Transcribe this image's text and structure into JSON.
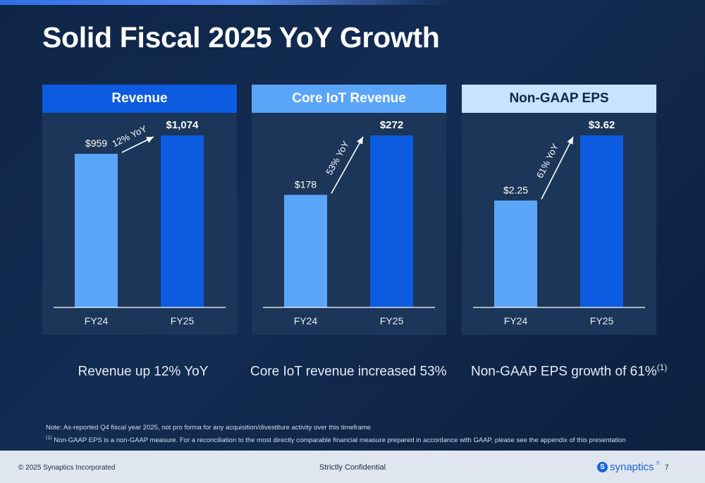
{
  "slide": {
    "title": "Solid Fiscal 2025 YoY Growth",
    "notes": {
      "line1": "Note: As-reported Q4 fiscal year 2025, not pro forma for any acquisition/divestiture activity over this timeframe",
      "line2_marker": "(1)",
      "line2": " Non-GAAP EPS is a non-GAAP measure. For a reconciliation to the most directly comparable financial measure prepared in accordance with GAAP, please see the appendix of this presentation"
    },
    "footer": {
      "copyright": "© 2025 Synaptics Incorporated",
      "confidential": "Strictly Confidential",
      "logo_mark": "S",
      "logo_text": "synaptics",
      "logo_tm": "®",
      "page": "7"
    }
  },
  "colors": {
    "fy24_bar": "#5aa5f8",
    "fy25_bar": "#0d5be0",
    "header_revenue": "#0d5be0",
    "header_core_iot": "#5aa5f8",
    "header_eps": "#c8e2ff"
  },
  "chart_data": [
    {
      "type": "bar",
      "title": "Revenue",
      "categories": [
        "FY24",
        "FY25"
      ],
      "values": [
        959,
        1074
      ],
      "value_labels": [
        "$959",
        "$1,074"
      ],
      "growth_label": "12% YoY",
      "caption": "Revenue up 12% YoY",
      "caption_marker": ""
    },
    {
      "type": "bar",
      "title": "Core IoT Revenue",
      "categories": [
        "FY24",
        "FY25"
      ],
      "values": [
        178,
        272
      ],
      "value_labels": [
        "$178",
        "$272"
      ],
      "growth_label": "53% YoY",
      "caption": "Core IoT revenue increased 53%",
      "caption_marker": ""
    },
    {
      "type": "bar",
      "title": "Non-GAAP EPS",
      "categories": [
        "FY24",
        "FY25"
      ],
      "values": [
        2.25,
        3.62
      ],
      "value_labels": [
        "$2.25",
        "$3.62"
      ],
      "growth_label": "61% YoY",
      "caption": "Non-GAAP EPS growth of 61%",
      "caption_marker": "(1)"
    }
  ]
}
